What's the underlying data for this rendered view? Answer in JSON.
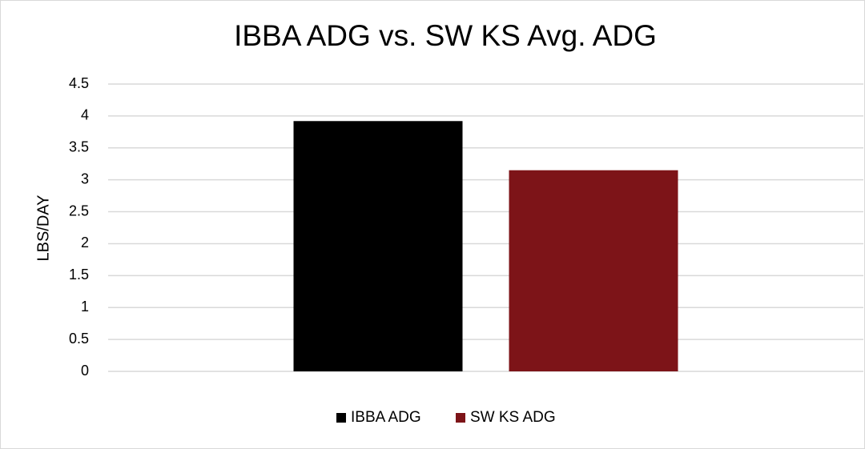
{
  "chart_data": {
    "type": "bar",
    "title": "IBBA ADG vs. SW KS Avg. ADG",
    "y_label": "LBS/DAY",
    "categories": [
      null
    ],
    "series": [
      {
        "name": "IBBA ADG",
        "color": "#000000",
        "values": [
          3.92
        ]
      },
      {
        "name": "SW KS ADG",
        "color": "#7d1418",
        "values": [
          3.15
        ]
      }
    ],
    "ylim": [
      0,
      4.5
    ],
    "yticks": [
      0,
      0.5,
      1,
      1.5,
      2,
      2.5,
      3,
      3.5,
      4,
      4.5
    ],
    "grid": true,
    "legend": "bottom"
  }
}
